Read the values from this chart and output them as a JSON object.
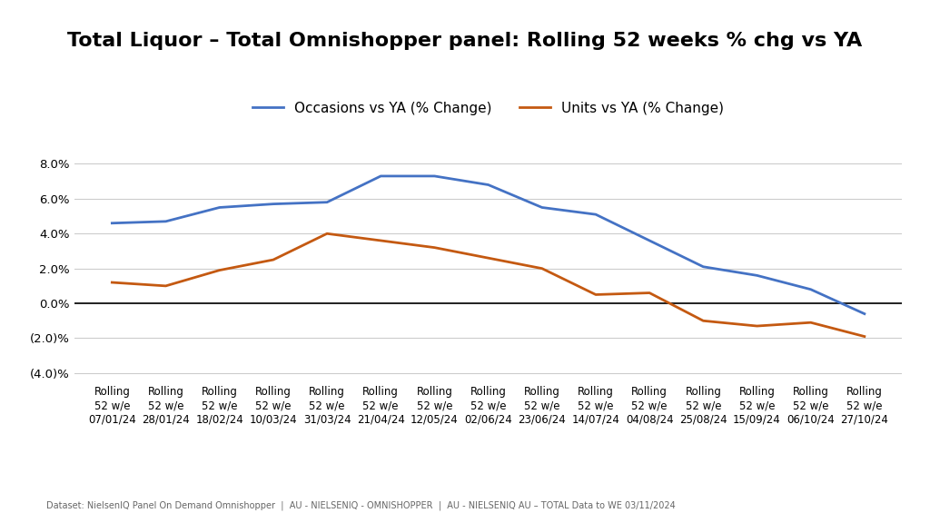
{
  "title": "Total Liquor – Total Omnishopper panel: Rolling 52 weeks % chg vs YA",
  "legend_labels": [
    "Occasions vs YA (% Change)",
    "Units vs YA (% Change)"
  ],
  "line_colors": [
    "#4472C4",
    "#C45911"
  ],
  "x_labels": [
    "Rolling\n52 w/e\n07/01/24",
    "Rolling\n52 w/e\n28/01/24",
    "Rolling\n52 w/e\n18/02/24",
    "Rolling\n52 w/e\n10/03/24",
    "Rolling\n52 w/e\n31/03/24",
    "Rolling\n52 w/e\n21/04/24",
    "Rolling\n52 w/e\n12/05/24",
    "Rolling\n52 w/e\n02/06/24",
    "Rolling\n52 w/e\n23/06/24",
    "Rolling\n52 w/e\n14/07/24",
    "Rolling\n52 w/e\n04/08/24",
    "Rolling\n52 w/e\n25/08/24",
    "Rolling\n52 w/e\n15/09/24",
    "Rolling\n52 w/e\n06/10/24",
    "Rolling\n52 w/e\n27/10/24"
  ],
  "occasions_data": [
    4.6,
    4.7,
    5.5,
    5.7,
    5.8,
    7.3,
    7.3,
    6.8,
    5.5,
    5.1,
    3.6,
    2.1,
    1.6,
    0.8,
    -0.6
  ],
  "units_data": [
    1.2,
    1.0,
    1.9,
    2.5,
    4.0,
    3.6,
    3.2,
    2.6,
    2.0,
    0.5,
    0.6,
    -1.0,
    -1.3,
    -1.1,
    -1.9
  ],
  "ylim": [
    -4.5,
    9.0
  ],
  "yticks": [
    -4.0,
    -2.0,
    0.0,
    2.0,
    4.0,
    6.0,
    8.0
  ],
  "footnote": "Dataset: NielsenIQ Panel On Demand Omnishopper  |  AU - NIELSENIQ - OMNISHOPPER  |  AU - NIELSENIQ AU – TOTAL Data to WE 03/11/2024",
  "background_color": "#FFFFFF",
  "grid_color": "#CCCCCC",
  "title_fontsize": 16,
  "legend_fontsize": 11,
  "tick_fontsize": 8.5,
  "footnote_fontsize": 7
}
